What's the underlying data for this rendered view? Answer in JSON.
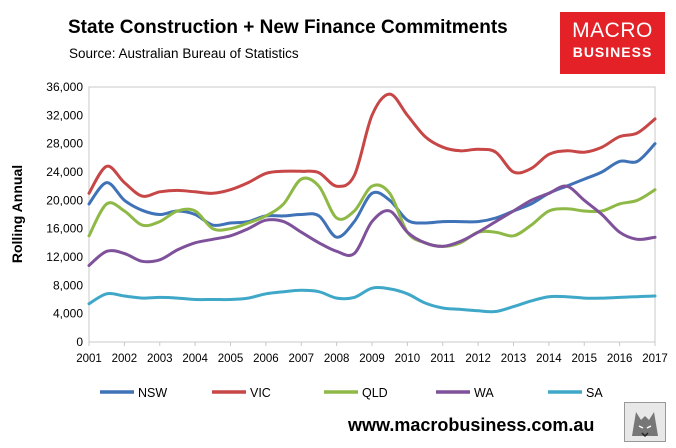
{
  "header": {
    "title": "State Construction + New Finance Commitments",
    "subtitle": "Source: Australian Bureau of Statistics"
  },
  "logo": {
    "line1": "MACRO",
    "line2": "BUSINESS",
    "color": "#e32126"
  },
  "footer": {
    "url": "www.macrobusiness.com.au",
    "icon": "wolf-logo-icon"
  },
  "chart_data": {
    "type": "line",
    "ylabel": "Rolling Annual",
    "xlabel": "",
    "ylim": [
      0,
      36000
    ],
    "yticks": [
      0,
      4000,
      8000,
      12000,
      16000,
      20000,
      24000,
      28000,
      32000,
      36000
    ],
    "ytick_labels": [
      "0",
      "4,000",
      "8,000",
      "12,000",
      "16,000",
      "20,000",
      "24,000",
      "28,000",
      "32,000",
      "36,000"
    ],
    "xlim": [
      2001,
      2017
    ],
    "xticks": [
      "2001",
      "2002",
      "2003",
      "2004",
      "2005",
      "2006",
      "2007",
      "2008",
      "2009",
      "2010",
      "2011",
      "2012",
      "2013",
      "2014",
      "2015",
      "2016",
      "2017"
    ],
    "grid": false,
    "legend_position": "bottom",
    "x": [
      2001.0,
      2001.5,
      2002.0,
      2002.5,
      2003.0,
      2003.5,
      2004.0,
      2004.5,
      2005.0,
      2005.5,
      2006.0,
      2006.5,
      2007.0,
      2007.5,
      2008.0,
      2008.5,
      2009.0,
      2009.5,
      2010.0,
      2010.5,
      2011.0,
      2011.5,
      2012.0,
      2012.5,
      2013.0,
      2013.5,
      2014.0,
      2014.5,
      2015.0,
      2015.5,
      2016.0,
      2016.5,
      2017.0
    ],
    "series": [
      {
        "name": "NSW",
        "color": "#3f72b7",
        "values": [
          19500,
          22500,
          20000,
          18600,
          18000,
          18500,
          18000,
          16500,
          16800,
          17000,
          17800,
          17800,
          18000,
          17800,
          14800,
          17000,
          21000,
          20000,
          17200,
          16800,
          17000,
          17000,
          17000,
          17500,
          18500,
          19500,
          21000,
          22000,
          23000,
          24000,
          25500,
          25500,
          28000
        ]
      },
      {
        "name": "VIC",
        "color": "#c74646",
        "values": [
          21000,
          24800,
          22500,
          20600,
          21200,
          21400,
          21200,
          21000,
          21500,
          22500,
          23800,
          24100,
          24100,
          23900,
          22000,
          23500,
          32000,
          35000,
          32000,
          29000,
          27500,
          27000,
          27200,
          26800,
          24000,
          24500,
          26500,
          27000,
          26800,
          27500,
          29000,
          29500,
          31500
        ]
      },
      {
        "name": "QLD",
        "color": "#8fb947",
        "values": [
          15000,
          19500,
          18500,
          16500,
          17000,
          18500,
          18500,
          16000,
          16000,
          16800,
          17800,
          19500,
          23000,
          22000,
          17500,
          18500,
          22000,
          21000,
          15500,
          14000,
          13500,
          14000,
          15500,
          15500,
          15000,
          16500,
          18500,
          18800,
          18500,
          18500,
          19500,
          20000,
          21500
        ]
      },
      {
        "name": "WA",
        "color": "#7f519b",
        "values": [
          10800,
          12800,
          12500,
          11400,
          11600,
          13000,
          14000,
          14500,
          15000,
          16000,
          17200,
          17000,
          15500,
          14000,
          12800,
          12500,
          17000,
          18500,
          15500,
          14000,
          13500,
          14200,
          15500,
          17000,
          18500,
          20000,
          21000,
          22000,
          20000,
          18000,
          15500,
          14500,
          14800
        ]
      },
      {
        "name": "SA",
        "color": "#3fa8c8",
        "values": [
          5400,
          6800,
          6500,
          6200,
          6300,
          6200,
          6000,
          6000,
          6000,
          6200,
          6800,
          7100,
          7300,
          7100,
          6200,
          6300,
          7600,
          7500,
          6800,
          5500,
          4800,
          4600,
          4400,
          4300,
          5000,
          5800,
          6400,
          6400,
          6200,
          6200,
          6300,
          6400,
          6500
        ]
      }
    ]
  }
}
